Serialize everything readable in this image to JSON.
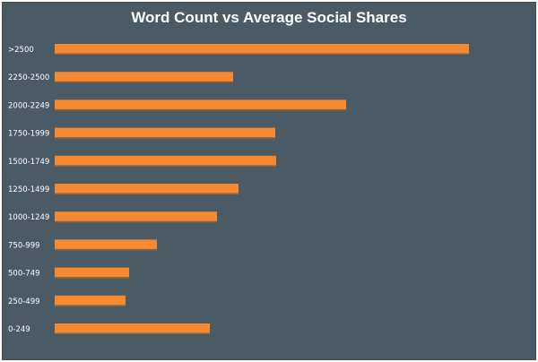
{
  "chart_data": {
    "type": "bar",
    "orientation": "horizontal",
    "title": "Word Count vs Average Social Shares",
    "xlabel": "",
    "ylabel": "",
    "grid": false,
    "legend": "none",
    "categories": [
      "0-249",
      "250-499",
      "500-749",
      "750-999",
      "1000-1249",
      "1250-1499",
      "1500-1749",
      "1750-1999",
      "2000-2249",
      "2250-2500",
      ">2500"
    ],
    "values": [
      173,
      79,
      83,
      114,
      181,
      205,
      247,
      246,
      325,
      199,
      462
    ],
    "xlim": [
      0,
      470
    ],
    "colors": {
      "bar": "#f58a33",
      "background": "#4a5b66",
      "text": "#ffffff"
    }
  }
}
